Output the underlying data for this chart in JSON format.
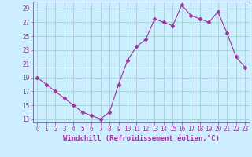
{
  "x": [
    0,
    1,
    2,
    3,
    4,
    5,
    6,
    7,
    8,
    9,
    10,
    11,
    12,
    13,
    14,
    15,
    16,
    17,
    18,
    19,
    20,
    21,
    22,
    23
  ],
  "y": [
    19,
    18,
    17,
    16,
    15,
    14,
    13.5,
    13,
    14,
    18,
    21.5,
    23.5,
    24.5,
    27.5,
    27,
    26.5,
    29.5,
    28,
    27.5,
    27,
    28.5,
    25.5,
    22,
    20.5
  ],
  "line_color": "#993399",
  "marker": "D",
  "marker_size": 2.5,
  "bg_color": "#cceeff",
  "grid_color": "#99cccc",
  "xlabel": "Windchill (Refroidissement éolien,°C)",
  "xlim": [
    -0.5,
    23.5
  ],
  "ylim": [
    12.5,
    30
  ],
  "yticks": [
    13,
    15,
    17,
    19,
    21,
    23,
    25,
    27,
    29
  ],
  "xticks": [
    0,
    1,
    2,
    3,
    4,
    5,
    6,
    7,
    8,
    9,
    10,
    11,
    12,
    13,
    14,
    15,
    16,
    17,
    18,
    19,
    20,
    21,
    22,
    23
  ],
  "tick_label_fontsize": 5.5,
  "xlabel_fontsize": 6.5,
  "tick_color": "#993399",
  "axis_color": "#993399",
  "spine_color": "#666699"
}
